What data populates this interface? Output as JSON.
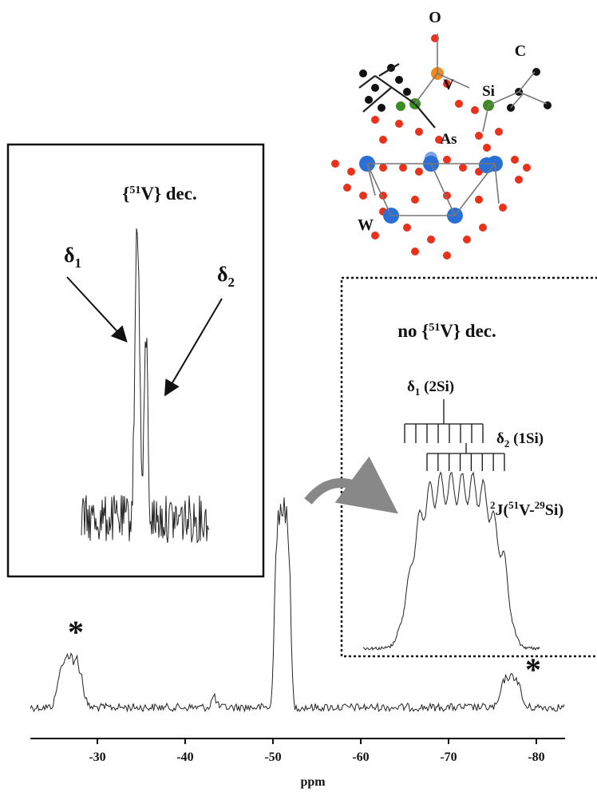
{
  "molecule": {
    "labels": [
      "O",
      "V",
      "Si",
      "C",
      "As",
      "W"
    ]
  },
  "left_inset": {
    "title": {
      "pre": "{",
      "sup": "51",
      "post": "V} dec."
    },
    "delta1": {
      "base": "δ",
      "sub": "1"
    },
    "delta2": {
      "base": "δ",
      "sub": "2"
    }
  },
  "right_inset": {
    "title": {
      "pre": "no {",
      "sup": "51",
      "post": "V} dec."
    },
    "delta1": {
      "base": "δ",
      "sub": "1",
      "post": " (2Si)"
    },
    "delta2": {
      "base": "δ",
      "sub": "2",
      "post": " (1Si)"
    },
    "coupling": {
      "sup1": "2",
      "pre": "J(",
      "sup2": "51",
      "mid": "V-",
      "sup3": "29",
      "post": "Si)"
    }
  },
  "main_spectrum": {
    "asterisk": "*",
    "xlabel": "ppm",
    "xlim": [
      -22,
      -83
    ],
    "xticks": [
      -30,
      -40,
      -50,
      -60,
      -70,
      -80
    ]
  }
}
